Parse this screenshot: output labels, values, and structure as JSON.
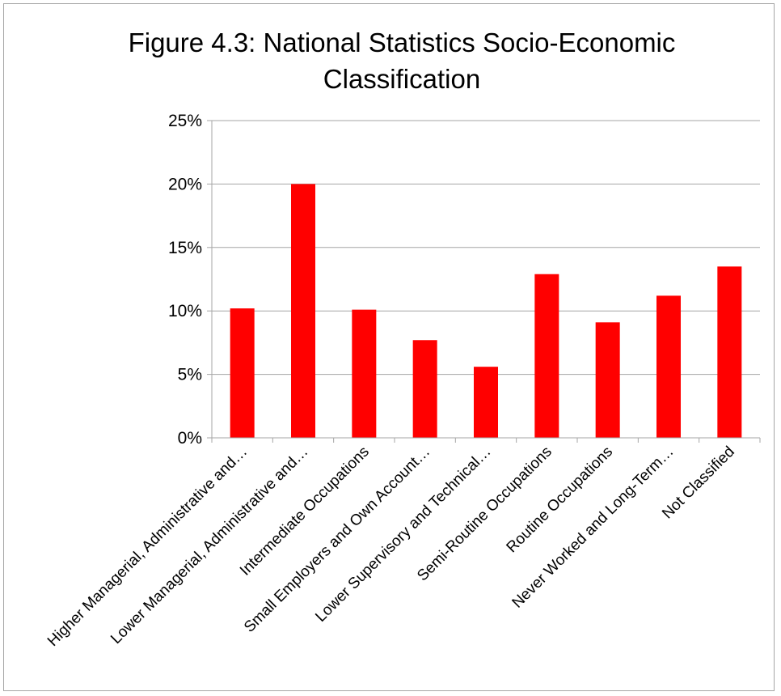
{
  "chart_data": {
    "type": "bar",
    "title": "Figure 4.3: National Statistics Socio-Economic Classification",
    "title_lines": [
      "Figure 4.3: National Statistics Socio-Economic",
      "Classification"
    ],
    "categories": [
      "Higher Managerial, Administrative and…",
      "Lower Managerial, Administrative and…",
      "Intermediate Occupations",
      "Small Employers and Own Account…",
      "Lower Supervisory and Technical…",
      "Semi-Routine Occupations",
      "Routine Occupations",
      "Never Worked and Long-Term…",
      "Not Classified"
    ],
    "values": [
      10.2,
      20.0,
      10.1,
      7.7,
      5.6,
      12.9,
      9.1,
      11.2,
      13.5
    ],
    "ylim": [
      0,
      25
    ],
    "yticks": [
      0,
      5,
      10,
      15,
      20,
      25
    ],
    "ytick_labels": [
      "0%",
      "5%",
      "10%",
      "15%",
      "20%",
      "25%"
    ],
    "xlabel": "",
    "ylabel": "",
    "grid": true,
    "legend": "none",
    "bar_color": "#ff0000",
    "grid_color": "#a6a6a6"
  }
}
